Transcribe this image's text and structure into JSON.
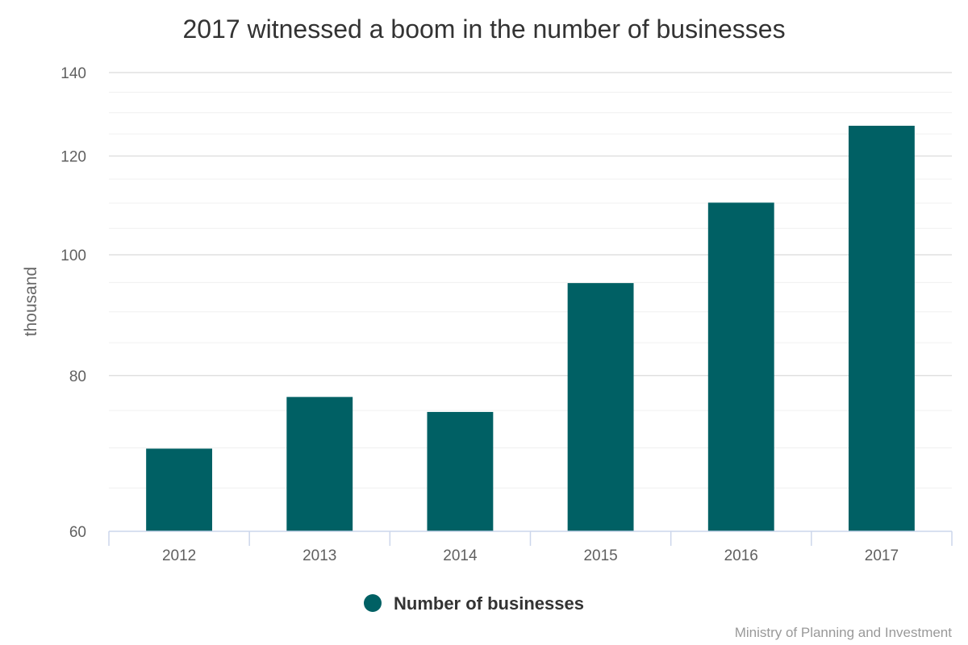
{
  "chart_data": {
    "type": "bar",
    "title": "2017 witnessed a boom in the number of businesses",
    "ylabel": "thousand",
    "xlabel": "",
    "categories": [
      "2012",
      "2013",
      "2014",
      "2015",
      "2016",
      "2017"
    ],
    "series": [
      {
        "name": "Number of businesses",
        "values": [
          69.9,
          76.9,
          74.8,
          94.9,
          110.1,
          126.9
        ],
        "color": "#006064"
      }
    ],
    "ylim": [
      60,
      140
    ],
    "yscale": "log",
    "yticks": [
      60,
      80,
      100,
      120,
      140
    ],
    "grid": true,
    "legend": "bottom-center",
    "credit": "Ministry of Planning and Investment"
  }
}
